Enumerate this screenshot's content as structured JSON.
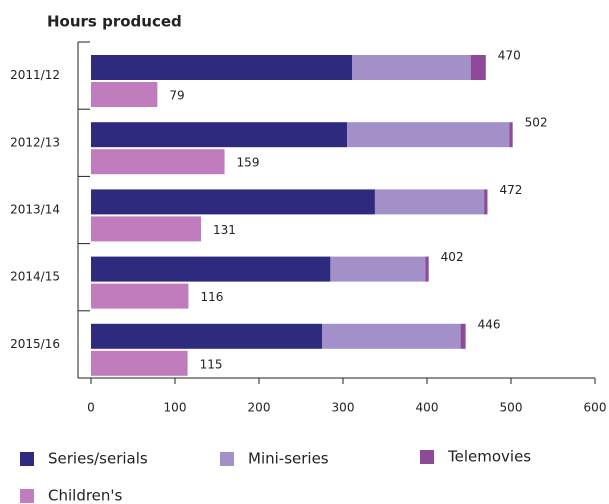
{
  "chart_data": {
    "type": "bar",
    "orientation": "horizontal",
    "title": "Hours produced",
    "categories": [
      "2011/12",
      "2012/13",
      "2013/14",
      "2014/15",
      "2015/16"
    ],
    "series": [
      {
        "name": "Series/serials",
        "color": "#2e2a7e",
        "stack": "main",
        "values": [
          311,
          305,
          338,
          285,
          275
        ]
      },
      {
        "name": "Mini-series",
        "color": "#a490c8",
        "stack": "main",
        "values": [
          141,
          193,
          130,
          113,
          165
        ]
      },
      {
        "name": "Telemovies",
        "color": "#8e4a98",
        "stack": "main",
        "values": [
          18,
          4,
          4,
          4,
          6
        ]
      },
      {
        "name": "Children's",
        "color": "#c07cbc",
        "stack": "children",
        "values": [
          79,
          159,
          131,
          116,
          115
        ]
      }
    ],
    "totals": [
      470,
      502,
      472,
      402,
      446
    ],
    "xlim": [
      0,
      600
    ],
    "xticks": [
      0,
      100,
      200,
      300,
      400,
      500,
      600
    ]
  }
}
